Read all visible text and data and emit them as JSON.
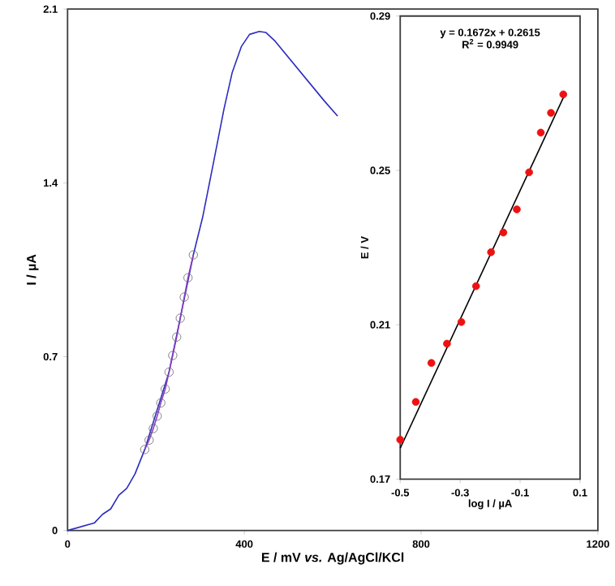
{
  "chart_data": [
    {
      "type": "line",
      "xlabel": "E / mV *vs.* Ag/AgCl/KCl",
      "ylabel": "I / µA",
      "xlim": [
        0,
        1200
      ],
      "ylim": [
        0,
        2.1
      ],
      "xticks": [
        0,
        400,
        800,
        1200
      ],
      "yticks": [
        0,
        0.7,
        1.4,
        2.1
      ],
      "series": [
        {
          "color": "#2b2bbf",
          "x": [
            0,
            61,
            79,
            97.6,
            116,
            134,
            152.6,
            174.6,
            229.6,
            284.6,
            305.7,
            330,
            354,
            372.6,
            393.5,
            411.8,
            433.8,
            448.5,
            470,
            581,
            611
          ],
          "values": [
            0,
            0.031,
            0.065,
            0.087,
            0.142,
            0.17,
            0.228,
            0.326,
            0.638,
            1.11,
            1.262,
            1.48,
            1.698,
            1.845,
            1.95,
            1.998,
            2.01,
            2.006,
            1.97,
            1.73,
            1.669
          ]
        },
        {
          "color": "#8b3fbf",
          "marker": "circle",
          "x": [
            174.6,
            184.5,
            194,
            202.8,
            211,
            221,
            229.6,
            238,
            246.8,
            255,
            264,
            272.5,
            284.6
          ],
          "values": [
            0.326,
            0.364,
            0.411,
            0.461,
            0.514,
            0.57,
            0.638,
            0.705,
            0.779,
            0.855,
            0.94,
            1.018,
            1.11
          ]
        }
      ]
    },
    {
      "type": "scatter",
      "xlabel": "log I / µA",
      "ylabel": "E / V",
      "xlim": [
        -0.5,
        0.1
      ],
      "ylim": [
        0.17,
        0.29
      ],
      "xticks": [
        -0.5,
        -0.3,
        -0.1,
        0.1
      ],
      "yticks": [
        0.17,
        0.21,
        0.25,
        0.29
      ],
      "marker": "circle",
      "annotations": [
        "y = 0.1672x + 0.2615",
        "R$^{2}$ = 0.9949"
      ],
      "series": [
        {
          "color": "#ee1111",
          "x": [
            -0.5,
            -0.448,
            -0.396,
            -0.344,
            -0.296,
            -0.247,
            -0.197,
            -0.156,
            -0.111,
            -0.07,
            -0.031,
            0.003,
            0.044
          ],
          "values": [
            0.1802,
            0.19,
            0.2001,
            0.2051,
            0.2107,
            0.22,
            0.2288,
            0.2339,
            0.2399,
            0.2495,
            0.2598,
            0.2649,
            0.2697
          ]
        },
        {
          "type": "line",
          "marker": "none",
          "color": "#000000",
          "x": [
            -0.5,
            0.045
          ],
          "values": [
            0.178,
            0.269
          ]
        }
      ]
    }
  ]
}
